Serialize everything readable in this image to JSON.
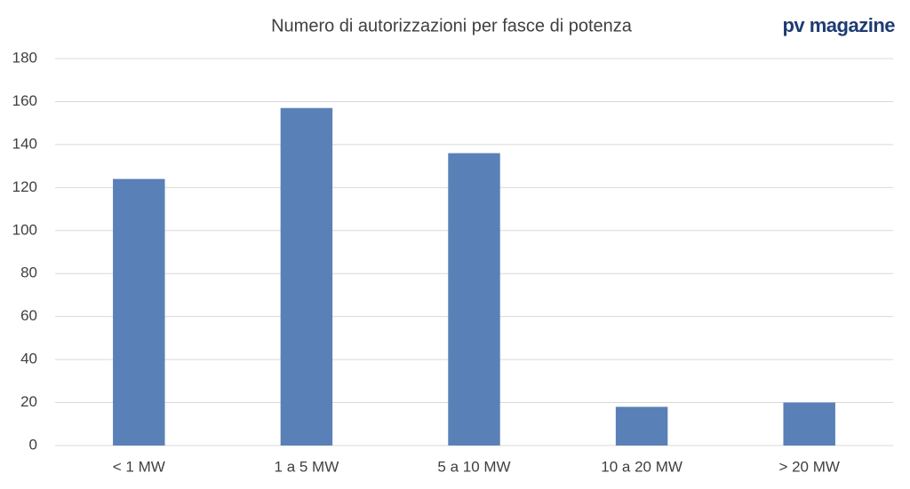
{
  "chart_data": {
    "type": "bar",
    "title": "Numero di autorizzazioni per fasce di potenza",
    "brand": "pv magazine",
    "categories": [
      "< 1 MW",
      "1 a 5 MW",
      "5 a 10 MW",
      "10 a 20 MW",
      "> 20 MW"
    ],
    "values": [
      124,
      157,
      136,
      18,
      20
    ],
    "color": "#5a80b8",
    "ylim": [
      0,
      180
    ],
    "yticks": [
      0,
      20,
      40,
      60,
      80,
      100,
      120,
      140,
      160,
      180
    ],
    "grid": true
  }
}
